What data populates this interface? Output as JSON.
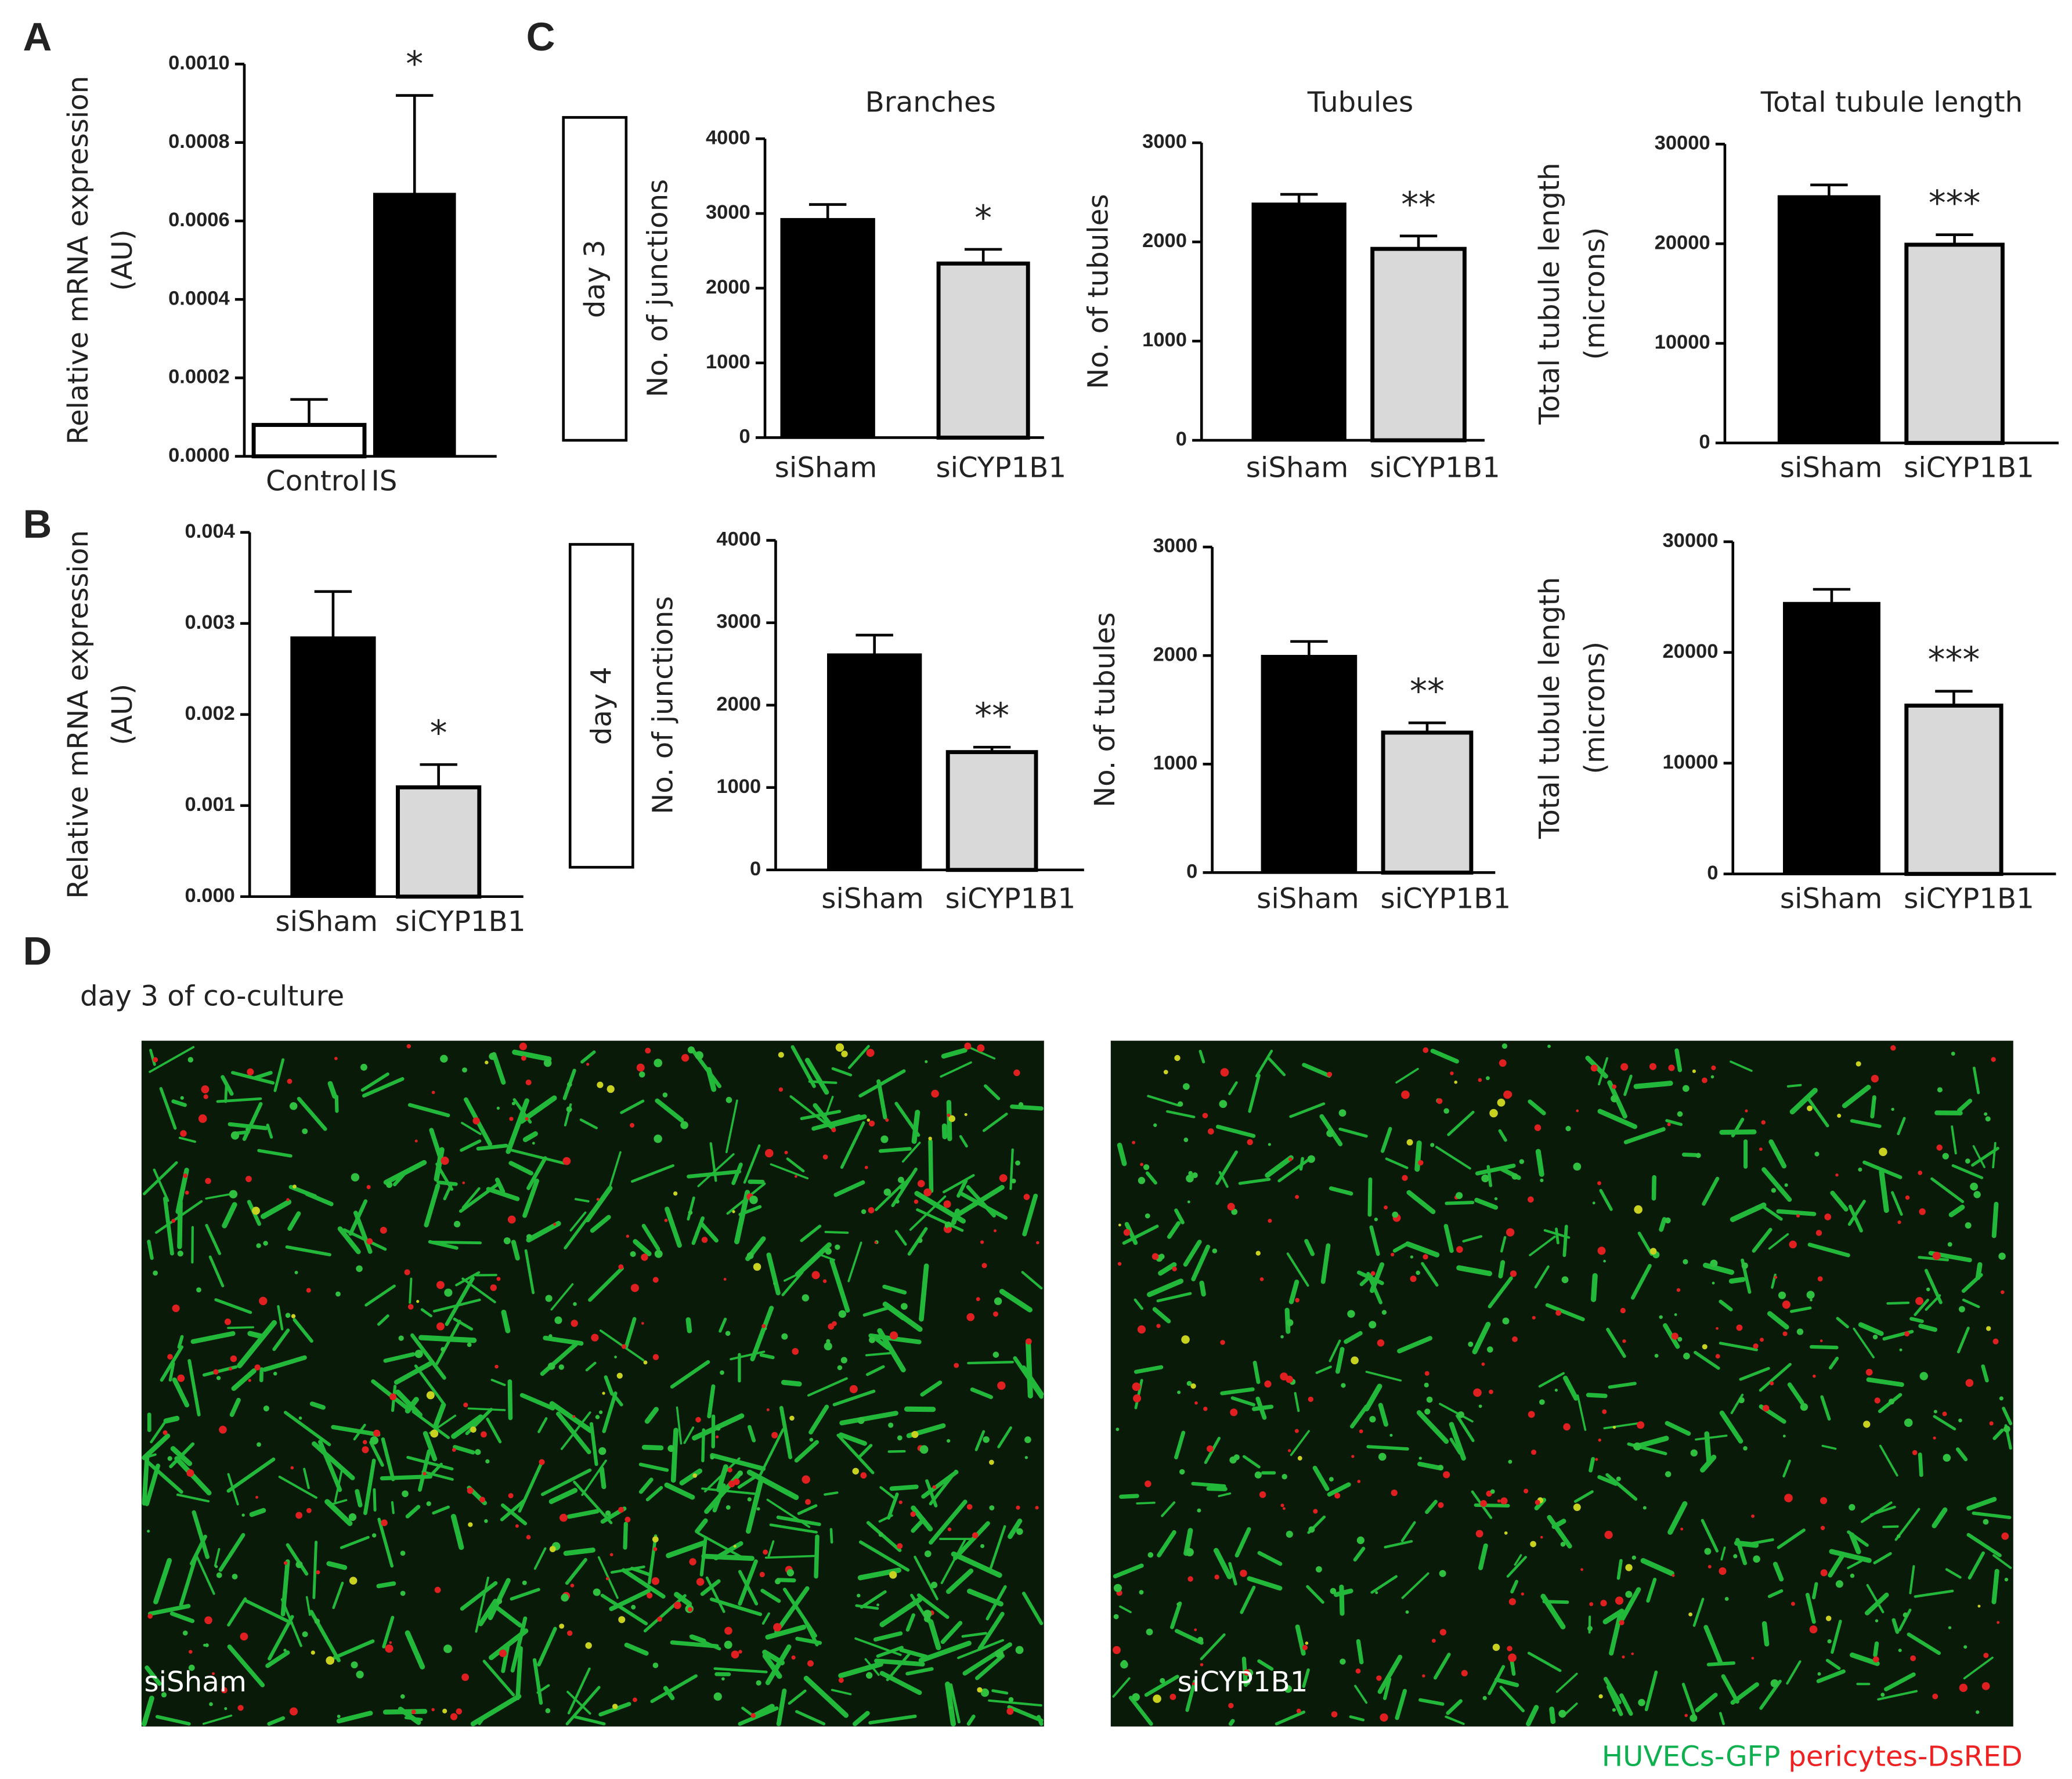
{
  "panel_labels": [
    "A",
    "B",
    "C",
    "D"
  ],
  "row_labels": [
    "day 3",
    "day 4"
  ],
  "chart_data": [
    {
      "type": "bar",
      "ylabel": [
        "Relative mRNA expression",
        "(AU)"
      ],
      "categories": [
        "Control",
        "IS"
      ],
      "values": [
        8e-05,
        0.00067
      ],
      "errors": [
        6.5e-05,
        0.00025
      ],
      "colors": [
        "#ffffff",
        "#000000"
      ],
      "ylim": [
        0,
        0.001
      ],
      "yticks": [
        {
          "value": 0,
          "label": "0.0000"
        },
        {
          "value": 0.0002,
          "label": "0.0002"
        },
        {
          "value": 0.0004,
          "label": "0.0004"
        },
        {
          "value": 0.0006,
          "label": "0.0006"
        },
        {
          "value": 0.0008,
          "label": "0.0008"
        },
        {
          "value": 0.001,
          "label": "0.0010"
        }
      ],
      "annotation": "*"
    },
    {
      "type": "bar",
      "ylabel": [
        "Relative mRNA expression",
        "(AU)"
      ],
      "categories": [
        "siSham",
        "siCYP1B1"
      ],
      "values": [
        0.00285,
        0.0012
      ],
      "errors": [
        0.0005,
        0.00025
      ],
      "colors": [
        "#000000",
        "#d9d9d9"
      ],
      "ylim": [
        0,
        0.004
      ],
      "yticks": [
        {
          "value": 0,
          "label": "0.000"
        },
        {
          "value": 0.001,
          "label": "0.001"
        },
        {
          "value": 0.002,
          "label": "0.002"
        },
        {
          "value": 0.003,
          "label": "0.003"
        },
        {
          "value": 0.004,
          "label": "0.004"
        }
      ],
      "annotation": "*"
    },
    {
      "type": "bar",
      "title": "Branches",
      "ylabel": [
        "No. of junctions"
      ],
      "categories": [
        "siSham",
        "siCYP1B1"
      ],
      "values": [
        2930,
        2330
      ],
      "errors": [
        190,
        190
      ],
      "colors": [
        "#000000",
        "#d9d9d9"
      ],
      "ylim": [
        0,
        4000
      ],
      "yticks": [
        0,
        1000,
        2000,
        3000,
        4000
      ],
      "annotation": "*"
    },
    {
      "type": "bar",
      "title": "Tubules",
      "ylabel": [
        "No. of tubules"
      ],
      "categories": [
        "siSham",
        "siCYP1B1"
      ],
      "values": [
        2390,
        1930
      ],
      "errors": [
        90,
        130
      ],
      "colors": [
        "#000000",
        "#d9d9d9"
      ],
      "ylim": [
        0,
        3000
      ],
      "yticks": [
        0,
        1000,
        2000,
        3000
      ],
      "annotation": "**"
    },
    {
      "type": "bar",
      "title": "Total tubule length",
      "ylabel": [
        "Total tubule length",
        "(microns)"
      ],
      "categories": [
        "siSham",
        "siCYP1B1"
      ],
      "values": [
        24800,
        19900
      ],
      "errors": [
        1100,
        1000
      ],
      "colors": [
        "#000000",
        "#d9d9d9"
      ],
      "ylim": [
        0,
        30000
      ],
      "yticks": [
        0,
        10000,
        20000,
        30000
      ],
      "annotation": "***"
    },
    {
      "type": "bar",
      "ylabel": [
        "No. of junctions"
      ],
      "categories": [
        "siSham",
        "siCYP1B1"
      ],
      "values": [
        2620,
        1430
      ],
      "errors": [
        230,
        60
      ],
      "colors": [
        "#000000",
        "#d9d9d9"
      ],
      "ylim": [
        0,
        4000
      ],
      "yticks": [
        0,
        1000,
        2000,
        3000,
        4000
      ],
      "annotation": "**"
    },
    {
      "type": "bar",
      "ylabel": [
        "No. of tubules"
      ],
      "categories": [
        "siSham",
        "siCYP1B1"
      ],
      "values": [
        2000,
        1290
      ],
      "errors": [
        130,
        90
      ],
      "colors": [
        "#000000",
        "#d9d9d9"
      ],
      "ylim": [
        0,
        3000
      ],
      "yticks": [
        0,
        1000,
        2000,
        3000
      ],
      "annotation": "**"
    },
    {
      "type": "bar",
      "ylabel": [
        "Total tubule length",
        "(microns)"
      ],
      "categories": [
        "siSham",
        "siCYP1B1"
      ],
      "values": [
        24500,
        15200
      ],
      "errors": [
        1200,
        1300
      ],
      "colors": [
        "#000000",
        "#d9d9d9"
      ],
      "ylim": [
        0,
        30000
      ],
      "yticks": [
        0,
        10000,
        20000,
        30000
      ],
      "annotation": "***"
    }
  ],
  "images": {
    "title": "day 3 of co-culture",
    "labels": [
      "siSham",
      "siCYP1B1"
    ],
    "legend": [
      {
        "text": "HUVECs-GFP",
        "color": "#10b050"
      },
      {
        "text": "pericytes-DsRED",
        "color": "#ee2222"
      }
    ]
  }
}
